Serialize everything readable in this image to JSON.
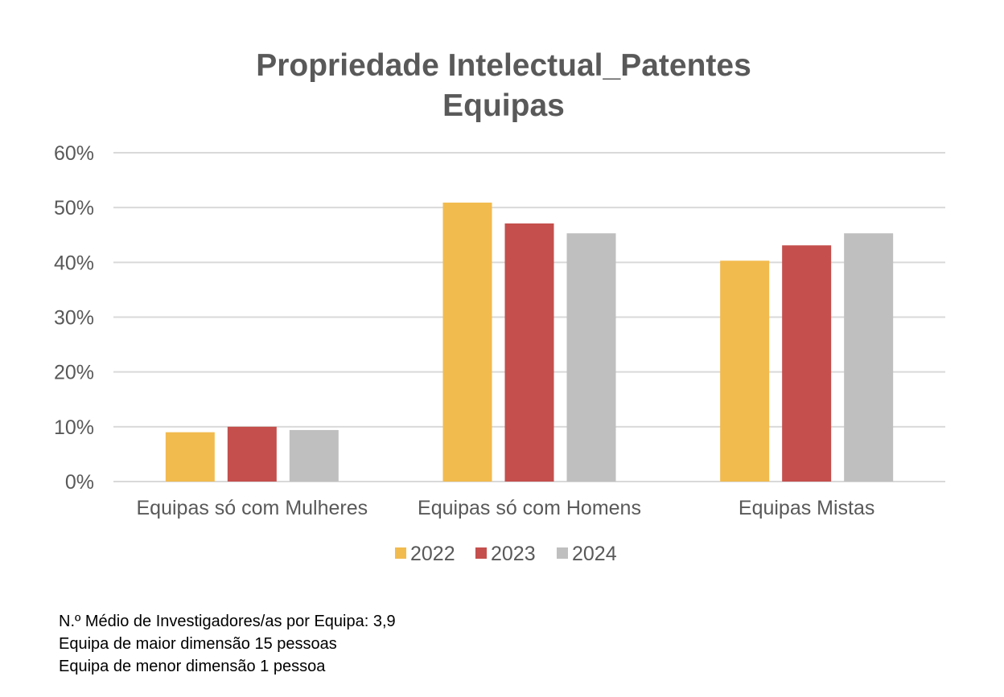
{
  "chart_data": {
    "type": "bar",
    "title": [
      "Propriedade Intelectual_Patentes",
      "Equipas"
    ],
    "categories": [
      "Equipas só com Mulheres",
      "Equipas só com Homens",
      "Equipas Mistas"
    ],
    "series": [
      {
        "name": "2022",
        "color": "#F2BB4E",
        "values": [
          9.0,
          50.9,
          40.3
        ]
      },
      {
        "name": "2023",
        "color": "#C44F4C",
        "values": [
          10.0,
          47.1,
          43.1
        ]
      },
      {
        "name": "2024",
        "color": "#BFBFBF",
        "values": [
          9.4,
          45.3,
          45.3
        ]
      }
    ],
    "ylim": [
      0,
      60
    ],
    "yticks": [
      "0%",
      "10%",
      "20%",
      "30%",
      "40%",
      "50%",
      "60%"
    ],
    "grid": true,
    "legend": "bottom"
  },
  "notes": [
    "N.º Médio de Investigadores/as por Equipa: 3,9",
    "Equipa de maior dimensão 15 pessoas",
    "Equipa de menor dimensão 1 pessoa"
  ]
}
